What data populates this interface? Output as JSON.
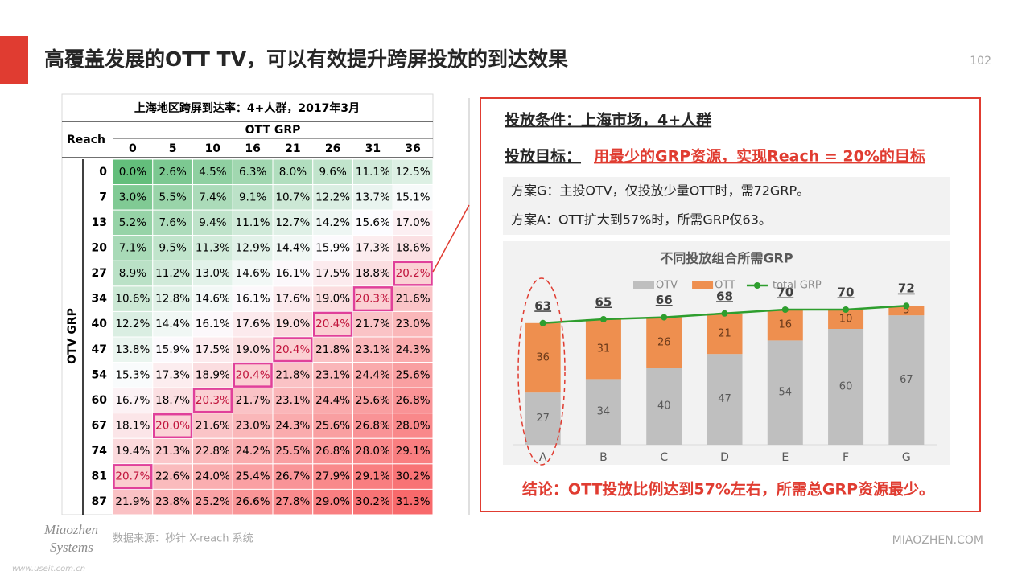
{
  "header": {
    "title": "高覆盖发展的OTT TV，可以有效提升跨屏投放的到达效果",
    "page_number": "102"
  },
  "table": {
    "title": "上海地区跨屏到达率：4+人群，2017年3月",
    "row_header": "Reach",
    "column_group": "OTT GRP",
    "row_group": "OTV GRP",
    "columns": [
      0,
      5,
      10,
      16,
      21,
      26,
      31,
      36
    ],
    "rows": [
      {
        "label": 0,
        "cells": [
          "0.0%",
          "2.6%",
          "4.5%",
          "6.3%",
          "8.0%",
          "9.6%",
          "11.1%",
          "12.5%"
        ]
      },
      {
        "label": 7,
        "cells": [
          "3.0%",
          "5.5%",
          "7.4%",
          "9.1%",
          "10.7%",
          "12.2%",
          "13.7%",
          "15.1%"
        ]
      },
      {
        "label": 13,
        "cells": [
          "5.2%",
          "7.6%",
          "9.4%",
          "11.1%",
          "12.7%",
          "14.2%",
          "15.6%",
          "17.0%"
        ]
      },
      {
        "label": 20,
        "cells": [
          "7.1%",
          "9.5%",
          "11.3%",
          "12.9%",
          "14.4%",
          "15.9%",
          "17.3%",
          "18.6%"
        ]
      },
      {
        "label": 27,
        "cells": [
          "8.9%",
          "11.2%",
          "13.0%",
          "14.6%",
          "16.1%",
          "17.5%",
          "18.8%",
          "20.2%"
        ]
      },
      {
        "label": 34,
        "cells": [
          "10.6%",
          "12.8%",
          "14.6%",
          "16.1%",
          "17.6%",
          "19.0%",
          "20.3%",
          "21.6%"
        ]
      },
      {
        "label": 40,
        "cells": [
          "12.2%",
          "14.4%",
          "16.1%",
          "17.6%",
          "19.0%",
          "20.4%",
          "21.7%",
          "23.0%"
        ]
      },
      {
        "label": 47,
        "cells": [
          "13.8%",
          "15.9%",
          "17.5%",
          "19.0%",
          "20.4%",
          "21.8%",
          "23.1%",
          "24.3%"
        ]
      },
      {
        "label": 54,
        "cells": [
          "15.3%",
          "17.3%",
          "18.9%",
          "20.4%",
          "21.8%",
          "23.1%",
          "24.4%",
          "25.6%"
        ]
      },
      {
        "label": 60,
        "cells": [
          "16.7%",
          "18.7%",
          "20.3%",
          "21.7%",
          "23.1%",
          "24.4%",
          "25.6%",
          "26.8%"
        ]
      },
      {
        "label": 67,
        "cells": [
          "18.1%",
          "20.0%",
          "21.6%",
          "23.0%",
          "24.3%",
          "25.6%",
          "26.8%",
          "28.0%"
        ]
      },
      {
        "label": 74,
        "cells": [
          "19.4%",
          "21.3%",
          "22.8%",
          "24.2%",
          "25.5%",
          "26.8%",
          "28.0%",
          "29.1%"
        ]
      },
      {
        "label": 81,
        "cells": [
          "20.7%",
          "22.6%",
          "24.0%",
          "25.4%",
          "26.7%",
          "27.9%",
          "29.1%",
          "30.2%"
        ]
      },
      {
        "label": 87,
        "cells": [
          "21.9%",
          "23.8%",
          "25.2%",
          "26.6%",
          "27.8%",
          "29.0%",
          "30.2%",
          "31.3%"
        ]
      }
    ],
    "highlighted_cells": [
      [
        4,
        7
      ],
      [
        5,
        6
      ],
      [
        6,
        5
      ],
      [
        7,
        4
      ],
      [
        8,
        3
      ],
      [
        9,
        2
      ],
      [
        10,
        1
      ],
      [
        12,
        0
      ]
    ]
  },
  "panel": {
    "condition": "投放条件：上海市场，4+人群",
    "goal_label": "投放目标：",
    "goal": "用最少的GRP资源，实现Reach = 20%的目标",
    "plans": [
      "方案G：主投OTV，仅投放少量OTT时，需72GRP。",
      "方案A：OTT扩大到57%时，所需GRP仅63。"
    ],
    "conclusion": "结论：OTT投放比例达到57%左右，所需总GRP资源最少。"
  },
  "chart_data": {
    "type": "bar",
    "stacked": true,
    "title": "不同投放组合所需GRP",
    "categories": [
      "A",
      "B",
      "C",
      "D",
      "E",
      "F",
      "G"
    ],
    "ylim": [
      0,
      80
    ],
    "series": [
      {
        "name": "OTV",
        "color": "#bfbfbf",
        "values": [
          27,
          34,
          40,
          47,
          54,
          60,
          67
        ]
      },
      {
        "name": "OTT",
        "color": "#ee8f4f",
        "values": [
          36,
          31,
          26,
          21,
          16,
          10,
          5
        ]
      },
      {
        "name": "total GRP",
        "type": "line",
        "color": "#2e9e2e",
        "values": [
          63,
          65,
          66,
          68,
          70,
          70,
          72
        ]
      }
    ]
  },
  "footer": {
    "logo": [
      "Miaozhen",
      "Systems"
    ],
    "watermark": "www.useit.com.cn",
    "source": "数据来源：秒针 X-reach 系统",
    "site": "MIAOZHEN.COM"
  }
}
